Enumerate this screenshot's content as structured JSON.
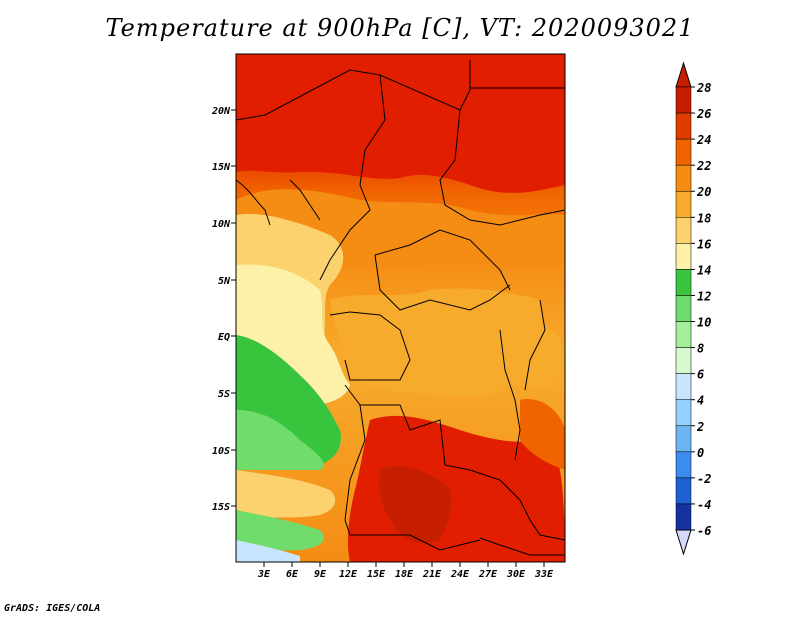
{
  "title": "Temperature at 900hPa [C], VT: 2020093021",
  "credit": "GrADS: IGES/COLA",
  "latitude_labels": [
    "20N",
    "15N",
    "10N",
    "5N",
    "EQ",
    "5S",
    "10S",
    "15S"
  ],
  "longitude_labels": [
    "3E",
    "6E",
    "9E",
    "12E",
    "15E",
    "18E",
    "21E",
    "24E",
    "27E",
    "30E",
    "33E"
  ],
  "colorbar": {
    "labels": [
      "28",
      "26",
      "24",
      "22",
      "20",
      "18",
      "16",
      "14",
      "12",
      "10",
      "8",
      "6",
      "4",
      "2",
      "0",
      "-2",
      "-4",
      "-6"
    ],
    "colors": [
      "#a00000",
      "#c81e00",
      "#e13c00",
      "#f06400",
      "#f58c14",
      "#f7ab2c",
      "#fbd26e",
      "#fdf0a8",
      "#39c43e",
      "#6fdc6c",
      "#a3ef9c",
      "#d7f9d0",
      "#c8e4ff",
      "#96d0ff",
      "#6eb4f0",
      "#3c8cf0",
      "#1e5fd2",
      "#1432a0",
      "#000070",
      "#d8d8ff"
    ],
    "top_arrow_color": "#c81e00",
    "bottom_arrow_color": "#d8d8ff"
  }
}
